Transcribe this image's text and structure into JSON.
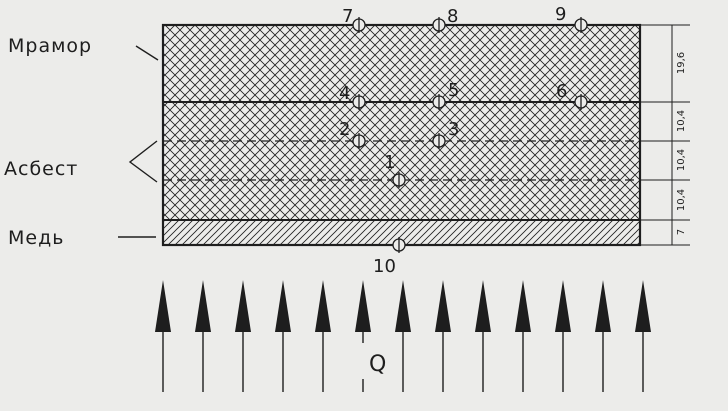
{
  "materials": {
    "marble": "Мрамор",
    "asbestos": "Асбест",
    "copper": "Медь"
  },
  "thickness_labels": [
    "19,6",
    "10,4",
    "10,4",
    "10,4",
    "7"
  ],
  "points": [
    {
      "id": "7",
      "label": "7"
    },
    {
      "id": "8",
      "label": "8"
    },
    {
      "id": "9",
      "label": "9"
    },
    {
      "id": "4",
      "label": "4"
    },
    {
      "id": "5",
      "label": "5"
    },
    {
      "id": "6",
      "label": "6"
    },
    {
      "id": "2",
      "label": "2"
    },
    {
      "id": "3",
      "label": "3"
    },
    {
      "id": "1",
      "label": "1"
    },
    {
      "id": "10",
      "label": "10"
    }
  ],
  "heat_flux_label": "Q",
  "colors": {
    "ink": "#1e1e1e",
    "background": "#ececea"
  }
}
